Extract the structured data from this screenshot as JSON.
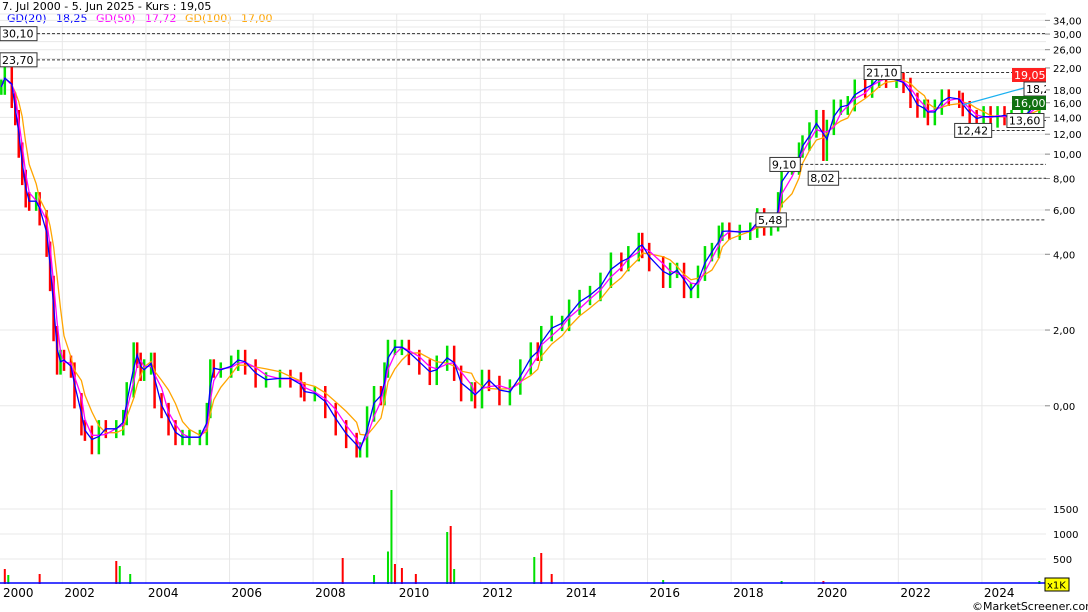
{
  "header": {
    "title": "7. Jul 2000 - 5. Jun 2025 - Kurs : 19,05",
    "legend": [
      {
        "label": "GD(20)",
        "value": "18,25",
        "color": "#0000ff"
      },
      {
        "label": "GD(50)",
        "value": "17,72",
        "color": "#ff00ff"
      },
      {
        "label": "GD(100)",
        "value": "17,00",
        "color": "#ffa500"
      }
    ]
  },
  "footer": {
    "copyright": "©MarketScreener.com",
    "volume_unit": "x1K"
  },
  "chart_data": {
    "type": "line",
    "title": "7. Jul 2000 - 5. Jun 2025 - Kurs : 19,05",
    "y_scale": "log",
    "grid": true,
    "x_tick_labels": [
      "2000",
      "2002",
      "2004",
      "2006",
      "2008",
      "2010",
      "2012",
      "2014",
      "2016",
      "2018",
      "2020",
      "2022",
      "2024"
    ],
    "y_tick_labels": [
      "34,00",
      "30,00",
      "26,00",
      "22,00",
      "18,00",
      "16,00",
      "14,00",
      "12,00",
      "10,00",
      "8,00",
      "6,00",
      "4,00",
      "2,00",
      "0,00"
    ],
    "volume_tick_labels": [
      "1500",
      "1000",
      "500"
    ],
    "colors": {
      "up": "#00e000",
      "down": "#ff0000",
      "trendline": "#1ab0f0",
      "last_price_tag": "#ff2020",
      "support_tag": "#107010"
    },
    "series": [
      {
        "name": "Kurs",
        "points": [
          [
            "2000-07",
            18.5
          ],
          [
            "2000-08",
            21.6
          ],
          [
            "2000-10",
            16.4
          ],
          [
            "2000-11",
            14.0
          ],
          [
            "2000-12",
            10.4
          ],
          [
            "2001-01",
            8.1
          ],
          [
            "2001-02",
            6.6
          ],
          [
            "2001-03",
            6.4
          ],
          [
            "2001-05",
            6.6
          ],
          [
            "2001-06",
            5.6
          ],
          [
            "2001-08",
            4.2
          ],
          [
            "2001-09",
            3.07
          ],
          [
            "2001-10",
            1.94
          ],
          [
            "2001-11",
            1.43
          ],
          [
            "2001-12",
            1.56
          ],
          [
            "2002-01",
            1.48
          ],
          [
            "2002-03",
            1.39
          ],
          [
            "2002-04",
            1.05
          ],
          [
            "2002-06",
            0.82
          ],
          [
            "2002-07",
            0.78
          ],
          [
            "2002-09",
            0.69
          ],
          [
            "2002-11",
            0.82
          ],
          [
            "2003-01",
            0.8
          ],
          [
            "2003-04",
            0.82
          ],
          [
            "2003-06",
            0.9
          ],
          [
            "2003-07",
            1.16
          ],
          [
            "2003-09",
            1.67
          ],
          [
            "2003-10",
            1.52
          ],
          [
            "2003-11",
            1.35
          ],
          [
            "2003-12",
            1.43
          ],
          [
            "2004-02",
            1.52
          ],
          [
            "2004-03",
            1.05
          ],
          [
            "2004-05",
            0.96
          ],
          [
            "2004-07",
            0.82
          ],
          [
            "2004-09",
            0.75
          ],
          [
            "2004-11",
            0.75
          ],
          [
            "2005-01",
            0.75
          ],
          [
            "2005-04",
            0.75
          ],
          [
            "2005-06",
            0.96
          ],
          [
            "2005-07",
            1.43
          ],
          [
            "2005-08",
            1.39
          ],
          [
            "2005-10",
            1.39
          ],
          [
            "2006-01",
            1.48
          ],
          [
            "2006-03",
            1.56
          ],
          [
            "2006-05",
            1.43
          ],
          [
            "2006-08",
            1.27
          ],
          [
            "2006-11",
            1.27
          ],
          [
            "2007-03",
            1.3
          ],
          [
            "2007-06",
            1.27
          ],
          [
            "2007-09",
            1.16
          ],
          [
            "2007-10",
            1.12
          ],
          [
            "2008-01",
            1.12
          ],
          [
            "2008-04",
            0.96
          ],
          [
            "2008-07",
            0.82
          ],
          [
            "2008-10",
            0.73
          ],
          [
            "2009-01",
            0.67
          ],
          [
            "2009-02",
            0.67
          ],
          [
            "2009-04",
            0.93
          ],
          [
            "2009-06",
            1.12
          ],
          [
            "2009-08",
            1.08
          ],
          [
            "2009-09",
            1.39
          ],
          [
            "2009-10",
            1.71
          ],
          [
            "2009-12",
            1.71
          ],
          [
            "2010-02",
            1.71
          ],
          [
            "2010-04",
            1.56
          ],
          [
            "2010-07",
            1.43
          ],
          [
            "2010-10",
            1.3
          ],
          [
            "2010-12",
            1.48
          ],
          [
            "2011-03",
            1.62
          ],
          [
            "2011-05",
            1.35
          ],
          [
            "2011-07",
            1.12
          ],
          [
            "2011-10",
            1.16
          ],
          [
            "2011-11",
            1.05
          ],
          [
            "2012-01",
            1.3
          ],
          [
            "2012-03",
            1.23
          ],
          [
            "2012-06",
            1.08
          ],
          [
            "2012-09",
            1.19
          ],
          [
            "2012-12",
            1.43
          ],
          [
            "2013-03",
            1.67
          ],
          [
            "2013-05",
            1.62
          ],
          [
            "2013-06",
            1.94
          ],
          [
            "2013-09",
            2.13
          ],
          [
            "2013-12",
            2.13
          ],
          [
            "2014-02",
            2.47
          ],
          [
            "2014-05",
            2.7
          ],
          [
            "2014-08",
            2.8
          ],
          [
            "2014-11",
            3.16
          ],
          [
            "2015-02",
            3.8
          ],
          [
            "2015-05",
            3.68
          ],
          [
            "2015-07",
            4.03
          ],
          [
            "2015-10",
            4.55
          ],
          [
            "2015-11",
            4.15
          ],
          [
            "2016-01",
            3.68
          ],
          [
            "2016-05",
            3.16
          ],
          [
            "2016-07",
            3.46
          ],
          [
            "2016-09",
            3.46
          ],
          [
            "2016-11",
            2.88
          ],
          [
            "2017-01",
            2.88
          ],
          [
            "2017-03",
            3.37
          ],
          [
            "2017-05",
            4.03
          ],
          [
            "2017-07",
            4.15
          ],
          [
            "2017-09",
            4.86
          ],
          [
            "2017-10",
            5.0
          ],
          [
            "2017-12",
            4.9
          ],
          [
            "2018-03",
            4.9
          ],
          [
            "2018-06",
            5.0
          ],
          [
            "2018-08",
            5.7
          ],
          [
            "2018-10",
            5.1
          ],
          [
            "2018-12",
            5.3
          ],
          [
            "2019-02",
            6.6
          ],
          [
            "2019-03",
            8.9
          ],
          [
            "2019-06",
            8.9
          ],
          [
            "2019-08",
            10.4
          ],
          [
            "2019-09",
            11.1
          ],
          [
            "2019-11",
            12.5
          ],
          [
            "2020-01",
            14.0
          ],
          [
            "2020-03",
            10.1
          ],
          [
            "2020-04",
            12.8
          ],
          [
            "2020-06",
            15.4
          ],
          [
            "2020-08",
            15.4
          ],
          [
            "2020-10",
            15.9
          ],
          [
            "2020-12",
            18.5
          ],
          [
            "2021-03",
            18.0
          ],
          [
            "2021-05",
            19.7
          ],
          [
            "2021-07",
            20.6
          ],
          [
            "2021-09",
            19.7
          ],
          [
            "2021-12",
            19.7
          ],
          [
            "2022-02",
            18.8
          ],
          [
            "2022-04",
            16.4
          ],
          [
            "2022-06",
            15.0
          ],
          [
            "2022-08",
            15.4
          ],
          [
            "2022-09",
            14.0
          ],
          [
            "2022-11",
            15.4
          ],
          [
            "2023-01",
            16.9
          ],
          [
            "2023-03",
            16.7
          ],
          [
            "2023-06",
            16.4
          ],
          [
            "2023-07",
            15.2
          ],
          [
            "2023-09",
            14.0
          ],
          [
            "2023-11",
            13.7
          ],
          [
            "2024-01",
            14.5
          ],
          [
            "2024-03",
            13.7
          ],
          [
            "2024-05",
            14.5
          ],
          [
            "2024-07",
            14.0
          ],
          [
            "2024-09",
            14.0
          ],
          [
            "2024-12",
            14.0
          ],
          [
            "2025-02",
            15.4
          ],
          [
            "2025-05",
            17.5
          ],
          [
            "2025-06",
            19.05
          ]
        ]
      }
    ],
    "volume": [
      [
        "2000-08",
        300,
        "down"
      ],
      [
        "2000-09",
        180,
        "up"
      ],
      [
        "2001-06",
        200,
        "down"
      ],
      [
        "2003-04",
        460,
        "down"
      ],
      [
        "2003-05",
        360,
        "up"
      ],
      [
        "2003-08",
        200,
        "up"
      ],
      [
        "2008-09",
        520,
        "down"
      ],
      [
        "2009-06",
        180,
        "up"
      ],
      [
        "2009-10",
        650,
        "up"
      ],
      [
        "2009-11",
        1880,
        "up"
      ],
      [
        "2009-12",
        400,
        "down"
      ],
      [
        "2010-02",
        320,
        "down"
      ],
      [
        "2010-06",
        200,
        "down"
      ],
      [
        "2011-03",
        1040,
        "up"
      ],
      [
        "2011-04",
        1160,
        "down"
      ],
      [
        "2011-05",
        300,
        "up"
      ],
      [
        "2013-04",
        540,
        "up"
      ],
      [
        "2013-06",
        620,
        "down"
      ],
      [
        "2013-09",
        200,
        "down"
      ],
      [
        "2016-05",
        80,
        "up"
      ],
      [
        "2019-03",
        60,
        "up"
      ],
      [
        "2020-03",
        60,
        "down"
      ],
      [
        "2025-05",
        60,
        "up"
      ]
    ],
    "annotations": [
      {
        "label": "30,10",
        "date": "2000-07",
        "value": 30.1
      },
      {
        "label": "23,70",
        "date": "2000-07",
        "value": 23.7
      },
      {
        "label": "21,10",
        "date": "2021-08",
        "value": 21.1
      },
      {
        "label": "12,42",
        "date": "2023-10",
        "value": 12.42
      },
      {
        "label": "13,60",
        "date": "2025-01",
        "value": 13.6
      },
      {
        "label": "9,10",
        "date": "2019-04",
        "value": 9.1
      },
      {
        "label": "8,02",
        "date": "2020-03",
        "value": 8.02
      },
      {
        "label": "5,48",
        "date": "2018-12",
        "value": 5.48
      }
    ],
    "trendline": {
      "from": [
        "2023-07",
        15.7
      ],
      "to": [
        "2025-06",
        19.7
      ]
    },
    "price_tags": [
      {
        "label": "19,05",
        "value": 19.05,
        "style": "last"
      },
      {
        "label": "18,25",
        "value": 18.25,
        "style": "plain"
      },
      {
        "label": "16,00",
        "value": 16.0,
        "style": "support"
      }
    ]
  }
}
